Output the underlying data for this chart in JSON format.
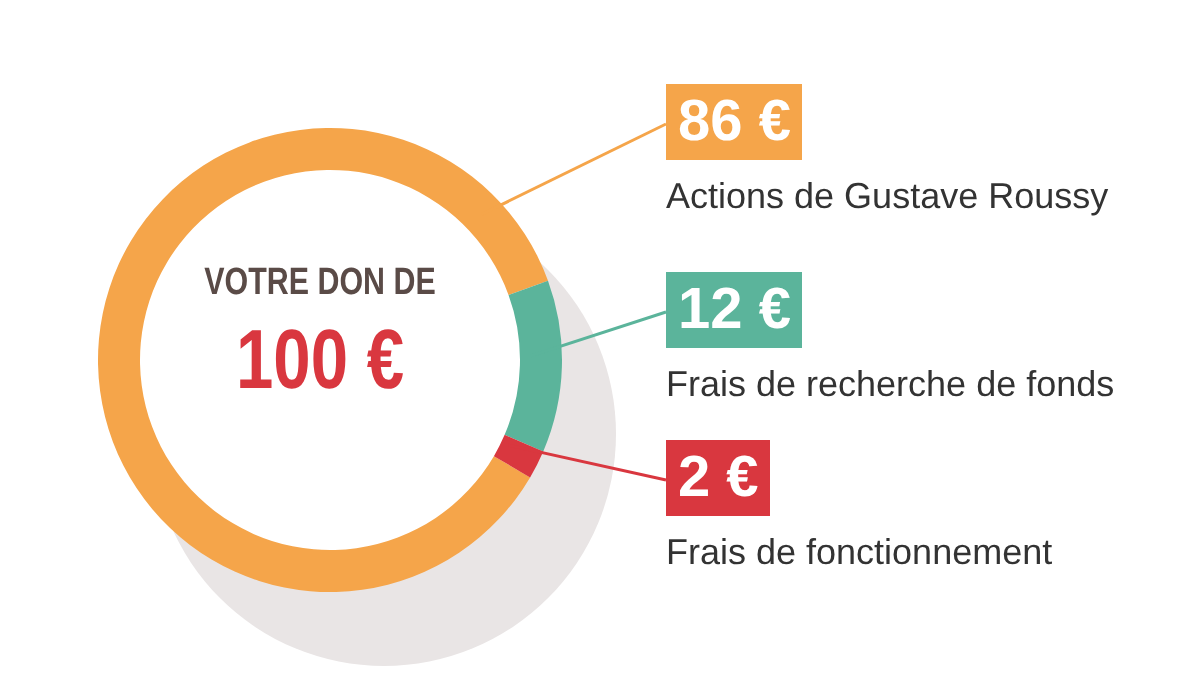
{
  "chart_data": {
    "type": "donut",
    "categories": [
      "Actions de Gustave Roussy",
      "Frais de recherche de fonds",
      "Frais de fonctionnement"
    ],
    "values": [
      86,
      12,
      2
    ],
    "value_labels": [
      "86 €",
      "12 €",
      "2 €"
    ],
    "colors": [
      "#f5a54a",
      "#5bb49b",
      "#d9373f"
    ],
    "annotations": [
      "VOTRE DON DE",
      "100 €"
    ],
    "legend": "right"
  }
}
